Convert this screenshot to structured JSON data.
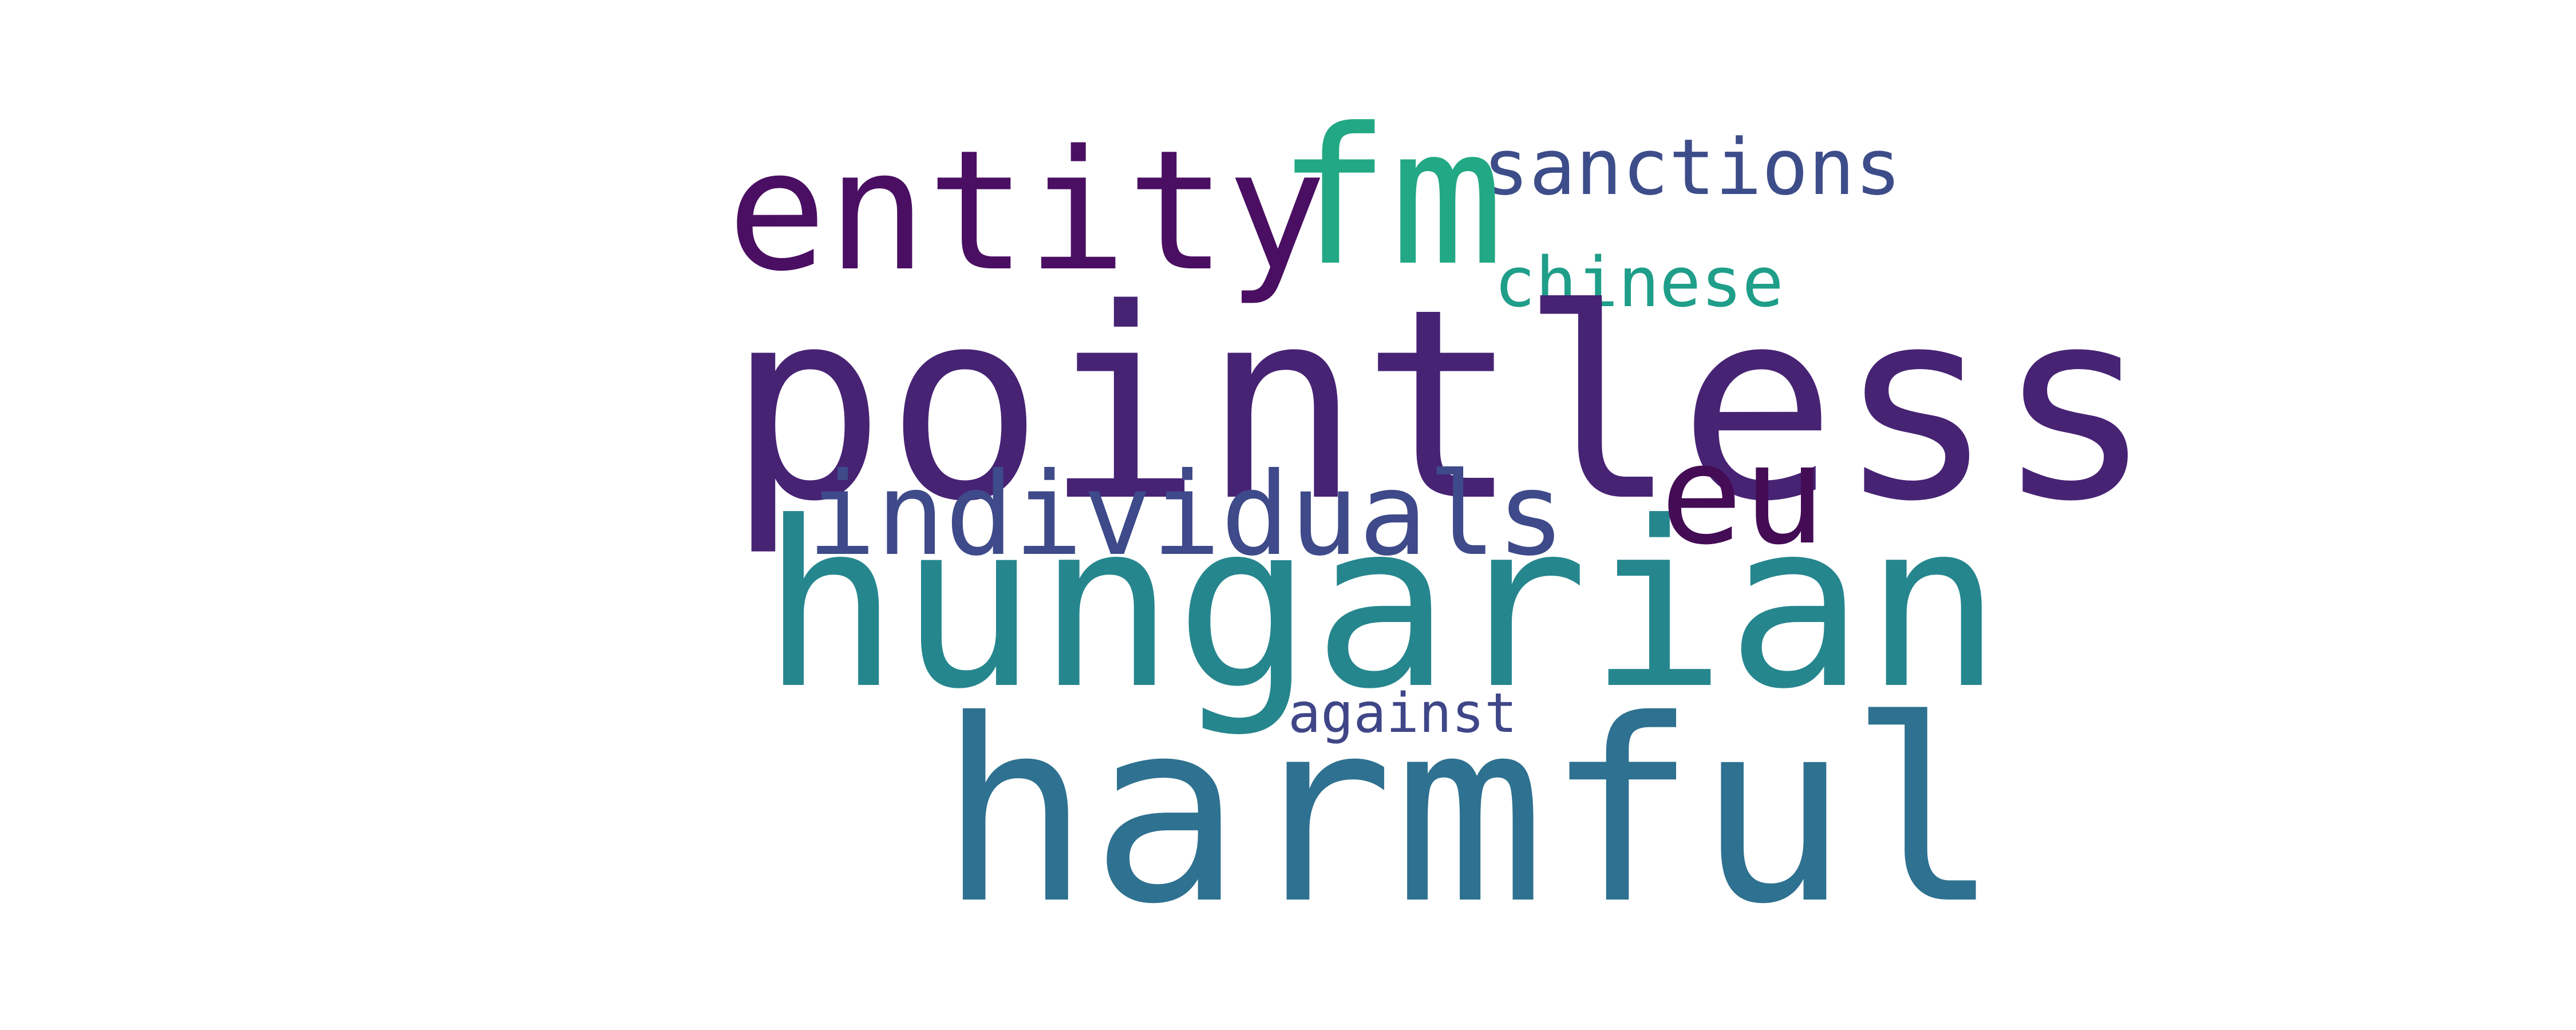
{
  "words": {
    "entity": {
      "text": "entity",
      "color": "#4a0f62"
    },
    "fm": {
      "text": "fm",
      "color": "#22a884"
    },
    "sanctions": {
      "text": "sanctions",
      "color": "#3d4d8a"
    },
    "chinese": {
      "text": "chinese",
      "color": "#1f9e89"
    },
    "pointless": {
      "text": "pointless",
      "color": "#472374"
    },
    "individuals": {
      "text": "individuals",
      "color": "#3e4a89"
    },
    "eu": {
      "text": "eu",
      "color": "#440c55"
    },
    "hungarian": {
      "text": "hungarian",
      "color": "#26868e"
    },
    "against": {
      "text": "against",
      "color": "#3f4688"
    },
    "harmful": {
      "text": "harmful",
      "color": "#2e7190"
    }
  }
}
